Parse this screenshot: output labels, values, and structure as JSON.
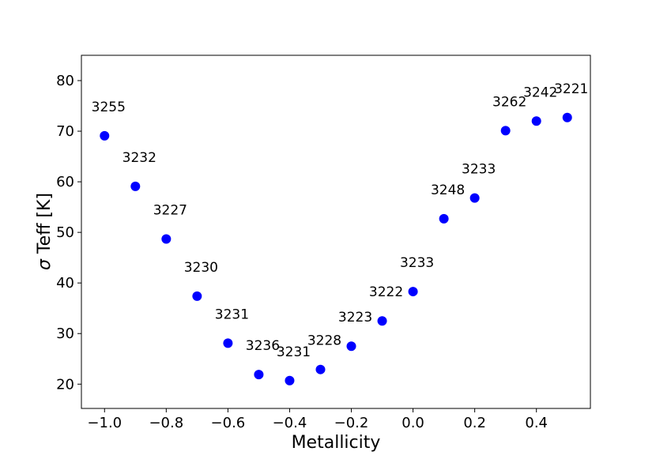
{
  "chart_data": {
    "type": "scatter",
    "title": "",
    "xlabel": "Metallicity",
    "ylabel": "σ Teff [K]",
    "ylabel_symbol": "σ",
    "ylabel_text": " Teff [K]",
    "xlim": [
      -1.075,
      0.575
    ],
    "ylim": [
      15.2,
      85.0
    ],
    "xticks": [
      -1.0,
      -0.8,
      -0.6,
      -0.4,
      -0.2,
      0.0,
      0.2,
      0.4
    ],
    "xtick_labels": [
      "−1.0",
      "−0.8",
      "−0.6",
      "−0.4",
      "−0.2",
      "0.0",
      "0.2",
      "0.4"
    ],
    "yticks": [
      20,
      30,
      40,
      50,
      60,
      70,
      80
    ],
    "ytick_labels": [
      "20",
      "30",
      "40",
      "50",
      "60",
      "70",
      "80"
    ],
    "grid": false,
    "marker_color": "#0000ff",
    "points": [
      {
        "x": -1.0,
        "y": 69.1,
        "label": "3255"
      },
      {
        "x": -0.9,
        "y": 59.1,
        "label": "3232"
      },
      {
        "x": -0.8,
        "y": 48.7,
        "label": "3227"
      },
      {
        "x": -0.7,
        "y": 37.4,
        "label": "3230"
      },
      {
        "x": -0.6,
        "y": 28.1,
        "label": "3231"
      },
      {
        "x": -0.5,
        "y": 21.9,
        "label": "3236"
      },
      {
        "x": -0.4,
        "y": 20.7,
        "label": "3231"
      },
      {
        "x": -0.3,
        "y": 22.9,
        "label": "3228"
      },
      {
        "x": -0.2,
        "y": 27.5,
        "label": "3223"
      },
      {
        "x": -0.1,
        "y": 32.5,
        "label": "3222"
      },
      {
        "x": 0.0,
        "y": 38.3,
        "label": "3233"
      },
      {
        "x": 0.1,
        "y": 52.7,
        "label": "3248"
      },
      {
        "x": 0.2,
        "y": 56.8,
        "label": "3233"
      },
      {
        "x": 0.3,
        "y": 70.1,
        "label": "3262"
      },
      {
        "x": 0.4,
        "y": 72.0,
        "label": "3242"
      },
      {
        "x": 0.5,
        "y": 72.7,
        "label": "3221"
      }
    ]
  }
}
